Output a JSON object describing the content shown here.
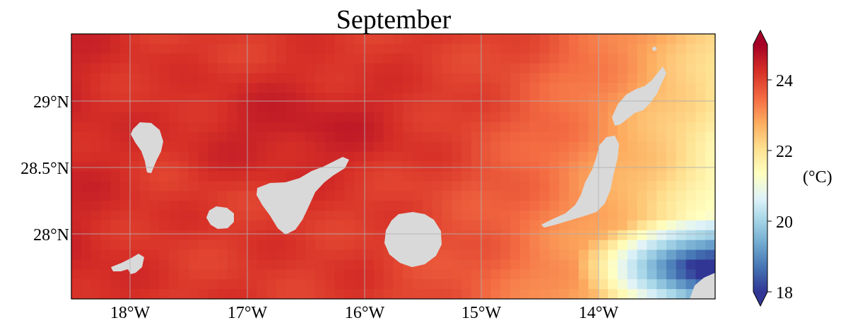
{
  "map": {
    "title": "September",
    "lon_ticks": [
      "18°W",
      "17°W",
      "16°W",
      "15°W",
      "14°W"
    ],
    "lat_ticks": [
      "29°N",
      "28.5°N",
      "28°N"
    ],
    "extent": {
      "lon_min": -18.5,
      "lon_max": -13.0,
      "lat_min": 27.5,
      "lat_max": 29.5
    }
  },
  "colorbar": {
    "label": "(°C)",
    "ticks": [
      "24",
      "22",
      "20",
      "18"
    ],
    "min": 18,
    "max": 25,
    "colormap": "RdYlBu_r",
    "colors": [
      "#313695",
      "#4575b4",
      "#74add1",
      "#abd9e9",
      "#e0f3f8",
      "#ffffbf",
      "#fee090",
      "#fdae61",
      "#f46d43",
      "#d73027",
      "#a50026"
    ]
  },
  "style": {
    "land_color": "#d9d9d9",
    "grid_color": "#b0b0b0"
  }
}
